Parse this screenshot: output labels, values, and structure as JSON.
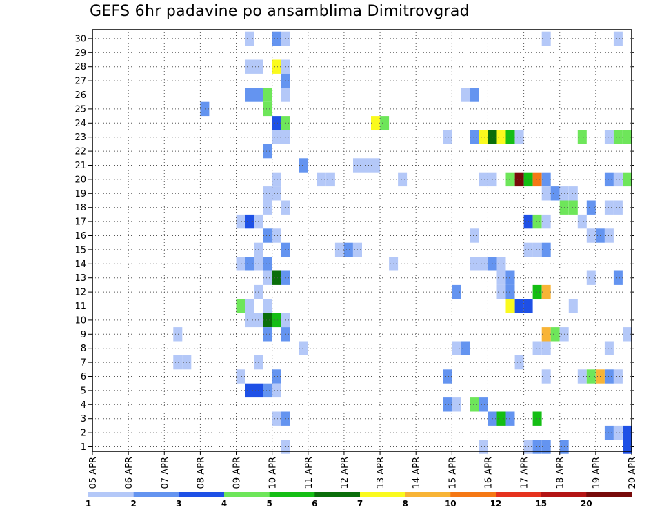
{
  "chart_data": {
    "type": "heatmap",
    "title": "GEFS 6hr padavine po ansamblima Dimitrovgrad",
    "xlabel": "",
    "ylabel": "",
    "x_unit": "days since 05 APR 00Z (6-hourly steps)",
    "xlim": [
      0,
      15
    ],
    "ylim": [
      0,
      30
    ],
    "x_ticks": [
      {
        "value": 0,
        "label": "05 APR"
      },
      {
        "value": 1,
        "label": "06 APR"
      },
      {
        "value": 2,
        "label": "07 APR"
      },
      {
        "value": 3,
        "label": "08 APR"
      },
      {
        "value": 4,
        "label": "09 APR"
      },
      {
        "value": 5,
        "label": "10 APR"
      },
      {
        "value": 6,
        "label": "11 APR"
      },
      {
        "value": 7,
        "label": "12 APR"
      },
      {
        "value": 8,
        "label": "13 APR"
      },
      {
        "value": 9,
        "label": "14 APR"
      },
      {
        "value": 10,
        "label": "15 APR"
      },
      {
        "value": 11,
        "label": "16 APR"
      },
      {
        "value": 12,
        "label": "17 APR"
      },
      {
        "value": 13,
        "label": "18 APR"
      },
      {
        "value": 14,
        "label": "19 APR"
      },
      {
        "value": 15,
        "label": "20 APR"
      }
    ],
    "y_ticks": [
      1,
      2,
      3,
      4,
      5,
      6,
      7,
      8,
      9,
      10,
      11,
      12,
      13,
      14,
      15,
      16,
      17,
      18,
      19,
      20,
      21,
      22,
      23,
      24,
      25,
      26,
      27,
      28,
      29,
      30
    ],
    "grid": true,
    "legend": {
      "position": "bottom",
      "colors": [
        "#b4c8f8",
        "#6494f0",
        "#1e50e6",
        "#6ee65a",
        "#14be14",
        "#0a6e0a",
        "#fafa1e",
        "#f8b436",
        "#f57814",
        "#e6321e",
        "#b41414",
        "#780a0a"
      ],
      "labels": [
        "1",
        "2",
        "3",
        "4",
        "5",
        "6",
        "7",
        "8",
        "10",
        "12",
        "15",
        "20"
      ]
    },
    "cells": [
      {
        "member": 30,
        "t": 4.25,
        "c": 0
      },
      {
        "member": 30,
        "t": 5.0,
        "c": 1
      },
      {
        "member": 30,
        "t": 5.25,
        "c": 0
      },
      {
        "member": 30,
        "t": 12.5,
        "c": 0
      },
      {
        "member": 30,
        "t": 14.5,
        "c": 0
      },
      {
        "member": 28,
        "t": 4.25,
        "c": 0
      },
      {
        "member": 28,
        "t": 4.5,
        "c": 0
      },
      {
        "member": 28,
        "t": 5.0,
        "c": 6
      },
      {
        "member": 28,
        "t": 5.25,
        "c": 0
      },
      {
        "member": 27,
        "t": 5.25,
        "c": 1
      },
      {
        "member": 26,
        "t": 4.25,
        "c": 1
      },
      {
        "member": 26,
        "t": 4.5,
        "c": 1
      },
      {
        "member": 26,
        "t": 4.75,
        "c": 3
      },
      {
        "member": 26,
        "t": 5.25,
        "c": 0
      },
      {
        "member": 26,
        "t": 10.25,
        "c": 0
      },
      {
        "member": 26,
        "t": 10.5,
        "c": 1
      },
      {
        "member": 25,
        "t": 3.0,
        "c": 1
      },
      {
        "member": 25,
        "t": 4.75,
        "c": 3
      },
      {
        "member": 24,
        "t": 5.0,
        "c": 2
      },
      {
        "member": 24,
        "t": 5.25,
        "c": 3
      },
      {
        "member": 24,
        "t": 7.75,
        "c": 6
      },
      {
        "member": 24,
        "t": 8.0,
        "c": 3
      },
      {
        "member": 23,
        "t": 5.0,
        "c": 0
      },
      {
        "member": 23,
        "t": 5.25,
        "c": 0
      },
      {
        "member": 23,
        "t": 9.75,
        "c": 0
      },
      {
        "member": 23,
        "t": 10.5,
        "c": 1
      },
      {
        "member": 23,
        "t": 10.75,
        "c": 6
      },
      {
        "member": 23,
        "t": 11.0,
        "c": 5
      },
      {
        "member": 23,
        "t": 11.25,
        "c": 6
      },
      {
        "member": 23,
        "t": 11.5,
        "c": 4
      },
      {
        "member": 23,
        "t": 11.75,
        "c": 0
      },
      {
        "member": 23,
        "t": 13.5,
        "c": 3
      },
      {
        "member": 23,
        "t": 14.25,
        "c": 0
      },
      {
        "member": 23,
        "t": 14.5,
        "c": 3
      },
      {
        "member": 23,
        "t": 14.75,
        "c": 3
      },
      {
        "member": 22,
        "t": 4.75,
        "c": 1
      },
      {
        "member": 21,
        "t": 5.75,
        "c": 1
      },
      {
        "member": 21,
        "t": 7.25,
        "c": 0
      },
      {
        "member": 21,
        "t": 7.5,
        "c": 0
      },
      {
        "member": 21,
        "t": 7.75,
        "c": 0
      },
      {
        "member": 20,
        "t": 5.0,
        "c": 0
      },
      {
        "member": 20,
        "t": 6.25,
        "c": 0
      },
      {
        "member": 20,
        "t": 6.5,
        "c": 0
      },
      {
        "member": 20,
        "t": 8.5,
        "c": 0
      },
      {
        "member": 20,
        "t": 10.75,
        "c": 0
      },
      {
        "member": 20,
        "t": 11.0,
        "c": 0
      },
      {
        "member": 20,
        "t": 11.5,
        "c": 3
      },
      {
        "member": 20,
        "t": 11.75,
        "c": 11
      },
      {
        "member": 20,
        "t": 12.0,
        "c": 4
      },
      {
        "member": 20,
        "t": 12.25,
        "c": 8
      },
      {
        "member": 20,
        "t": 12.5,
        "c": 1
      },
      {
        "member": 20,
        "t": 14.25,
        "c": 1
      },
      {
        "member": 20,
        "t": 14.5,
        "c": 0
      },
      {
        "member": 20,
        "t": 14.75,
        "c": 3
      },
      {
        "member": 19,
        "t": 4.75,
        "c": 0
      },
      {
        "member": 19,
        "t": 5.0,
        "c": 0
      },
      {
        "member": 19,
        "t": 12.5,
        "c": 0
      },
      {
        "member": 19,
        "t": 12.75,
        "c": 1
      },
      {
        "member": 19,
        "t": 13.0,
        "c": 0
      },
      {
        "member": 19,
        "t": 13.25,
        "c": 0
      },
      {
        "member": 18,
        "t": 4.75,
        "c": 0
      },
      {
        "member": 18,
        "t": 5.25,
        "c": 0
      },
      {
        "member": 18,
        "t": 13.0,
        "c": 3
      },
      {
        "member": 18,
        "t": 13.25,
        "c": 3
      },
      {
        "member": 18,
        "t": 13.75,
        "c": 1
      },
      {
        "member": 18,
        "t": 14.25,
        "c": 0
      },
      {
        "member": 18,
        "t": 14.5,
        "c": 0
      },
      {
        "member": 17,
        "t": 4.0,
        "c": 0
      },
      {
        "member": 17,
        "t": 4.25,
        "c": 2
      },
      {
        "member": 17,
        "t": 4.5,
        "c": 0
      },
      {
        "member": 17,
        "t": 12.0,
        "c": 2
      },
      {
        "member": 17,
        "t": 12.25,
        "c": 3
      },
      {
        "member": 17,
        "t": 12.5,
        "c": 0
      },
      {
        "member": 17,
        "t": 13.5,
        "c": 0
      },
      {
        "member": 16,
        "t": 4.75,
        "c": 1
      },
      {
        "member": 16,
        "t": 5.0,
        "c": 0
      },
      {
        "member": 16,
        "t": 10.5,
        "c": 0
      },
      {
        "member": 16,
        "t": 13.75,
        "c": 0
      },
      {
        "member": 16,
        "t": 14.0,
        "c": 1
      },
      {
        "member": 16,
        "t": 14.25,
        "c": 0
      },
      {
        "member": 15,
        "t": 4.5,
        "c": 0
      },
      {
        "member": 15,
        "t": 5.25,
        "c": 1
      },
      {
        "member": 15,
        "t": 6.75,
        "c": 0
      },
      {
        "member": 15,
        "t": 7.0,
        "c": 1
      },
      {
        "member": 15,
        "t": 7.25,
        "c": 0
      },
      {
        "member": 15,
        "t": 12.0,
        "c": 0
      },
      {
        "member": 15,
        "t": 12.25,
        "c": 0
      },
      {
        "member": 15,
        "t": 12.5,
        "c": 1
      },
      {
        "member": 14,
        "t": 4.0,
        "c": 0
      },
      {
        "member": 14,
        "t": 4.25,
        "c": 1
      },
      {
        "member": 14,
        "t": 4.5,
        "c": 0
      },
      {
        "member": 14,
        "t": 4.75,
        "c": 1
      },
      {
        "member": 14,
        "t": 8.25,
        "c": 0
      },
      {
        "member": 14,
        "t": 10.5,
        "c": 0
      },
      {
        "member": 14,
        "t": 10.75,
        "c": 0
      },
      {
        "member": 14,
        "t": 11.0,
        "c": 1
      },
      {
        "member": 14,
        "t": 11.25,
        "c": 0
      },
      {
        "member": 13,
        "t": 4.75,
        "c": 0
      },
      {
        "member": 13,
        "t": 5.0,
        "c": 5
      },
      {
        "member": 13,
        "t": 5.25,
        "c": 1
      },
      {
        "member": 13,
        "t": 11.25,
        "c": 0
      },
      {
        "member": 13,
        "t": 11.5,
        "c": 1
      },
      {
        "member": 13,
        "t": 13.75,
        "c": 0
      },
      {
        "member": 13,
        "t": 14.5,
        "c": 1
      },
      {
        "member": 12,
        "t": 4.5,
        "c": 0
      },
      {
        "member": 12,
        "t": 10.0,
        "c": 1
      },
      {
        "member": 12,
        "t": 11.25,
        "c": 0
      },
      {
        "member": 12,
        "t": 11.5,
        "c": 1
      },
      {
        "member": 12,
        "t": 12.25,
        "c": 4
      },
      {
        "member": 12,
        "t": 12.5,
        "c": 7
      },
      {
        "member": 11,
        "t": 4.0,
        "c": 3
      },
      {
        "member": 11,
        "t": 4.25,
        "c": 0
      },
      {
        "member": 11,
        "t": 4.75,
        "c": 0
      },
      {
        "member": 11,
        "t": 11.5,
        "c": 6
      },
      {
        "member": 11,
        "t": 11.75,
        "c": 2
      },
      {
        "member": 11,
        "t": 12.0,
        "c": 2
      },
      {
        "member": 11,
        "t": 13.25,
        "c": 0
      },
      {
        "member": 10,
        "t": 4.25,
        "c": 0
      },
      {
        "member": 10,
        "t": 4.5,
        "c": 0
      },
      {
        "member": 10,
        "t": 4.75,
        "c": 5
      },
      {
        "member": 10,
        "t": 5.0,
        "c": 4
      },
      {
        "member": 10,
        "t": 5.25,
        "c": 0
      },
      {
        "member": 9,
        "t": 2.25,
        "c": 0
      },
      {
        "member": 9,
        "t": 4.75,
        "c": 1
      },
      {
        "member": 9,
        "t": 5.25,
        "c": 1
      },
      {
        "member": 9,
        "t": 12.5,
        "c": 7
      },
      {
        "member": 9,
        "t": 12.75,
        "c": 3
      },
      {
        "member": 9,
        "t": 13.0,
        "c": 0
      },
      {
        "member": 9,
        "t": 14.75,
        "c": 0
      },
      {
        "member": 8,
        "t": 5.75,
        "c": 0
      },
      {
        "member": 8,
        "t": 10.0,
        "c": 0
      },
      {
        "member": 8,
        "t": 10.25,
        "c": 1
      },
      {
        "member": 8,
        "t": 12.25,
        "c": 0
      },
      {
        "member": 8,
        "t": 12.5,
        "c": 0
      },
      {
        "member": 8,
        "t": 14.25,
        "c": 0
      },
      {
        "member": 7,
        "t": 2.25,
        "c": 0
      },
      {
        "member": 7,
        "t": 2.5,
        "c": 0
      },
      {
        "member": 7,
        "t": 4.5,
        "c": 0
      },
      {
        "member": 7,
        "t": 11.75,
        "c": 0
      },
      {
        "member": 6,
        "t": 4.0,
        "c": 0
      },
      {
        "member": 6,
        "t": 5.0,
        "c": 1
      },
      {
        "member": 6,
        "t": 9.75,
        "c": 1
      },
      {
        "member": 6,
        "t": 12.5,
        "c": 0
      },
      {
        "member": 6,
        "t": 13.5,
        "c": 0
      },
      {
        "member": 6,
        "t": 13.75,
        "c": 3
      },
      {
        "member": 6,
        "t": 14.0,
        "c": 7
      },
      {
        "member": 6,
        "t": 14.25,
        "c": 1
      },
      {
        "member": 6,
        "t": 14.5,
        "c": 0
      },
      {
        "member": 5,
        "t": 4.25,
        "c": 2
      },
      {
        "member": 5,
        "t": 4.5,
        "c": 2
      },
      {
        "member": 5,
        "t": 4.75,
        "c": 1
      },
      {
        "member": 5,
        "t": 5.0,
        "c": 0
      },
      {
        "member": 4,
        "t": 9.75,
        "c": 1
      },
      {
        "member": 4,
        "t": 10.0,
        "c": 0
      },
      {
        "member": 4,
        "t": 10.5,
        "c": 3
      },
      {
        "member": 4,
        "t": 10.75,
        "c": 1
      },
      {
        "member": 3,
        "t": 5.0,
        "c": 0
      },
      {
        "member": 3,
        "t": 5.25,
        "c": 1
      },
      {
        "member": 3,
        "t": 11.0,
        "c": 1
      },
      {
        "member": 3,
        "t": 11.25,
        "c": 4
      },
      {
        "member": 3,
        "t": 11.5,
        "c": 1
      },
      {
        "member": 3,
        "t": 12.25,
        "c": 4
      },
      {
        "member": 2,
        "t": 14.25,
        "c": 1
      },
      {
        "member": 2,
        "t": 14.5,
        "c": 0
      },
      {
        "member": 2,
        "t": 14.75,
        "c": 2
      },
      {
        "member": 1,
        "t": 14.75,
        "c": 2
      },
      {
        "member": 1,
        "t": 5.25,
        "c": 0
      },
      {
        "member": 1,
        "t": 10.75,
        "c": 0
      },
      {
        "member": 1,
        "t": 12.0,
        "c": 0
      },
      {
        "member": 1,
        "t": 12.25,
        "c": 1
      },
      {
        "member": 1,
        "t": 12.5,
        "c": 1
      },
      {
        "member": 1,
        "t": 13.0,
        "c": 1
      }
    ]
  }
}
